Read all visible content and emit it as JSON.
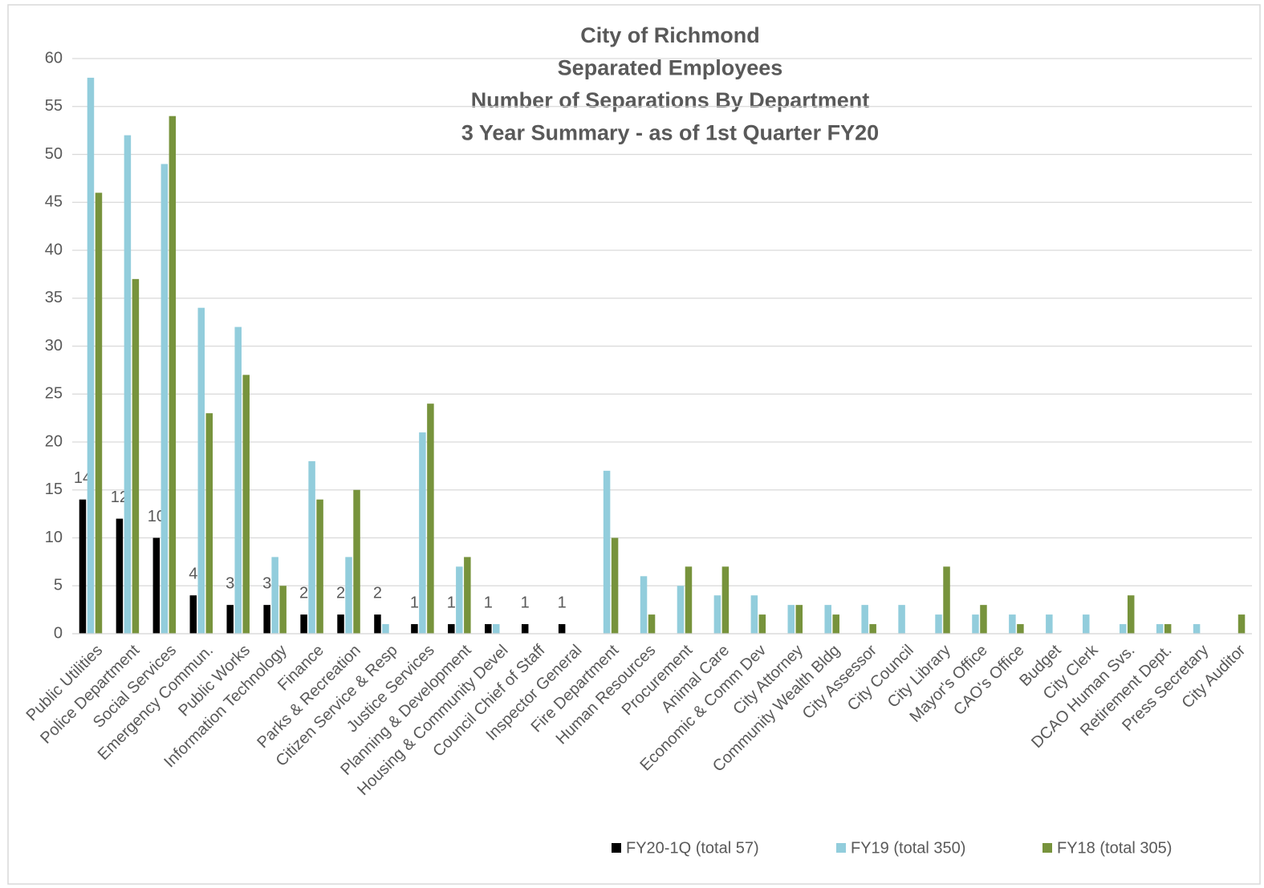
{
  "chart_data": {
    "type": "bar",
    "title": [
      "City of Richmond",
      "Separated Employees",
      "Number of Separations By Department",
      "3 Year Summary - as of 1st Quarter FY20"
    ],
    "categories": [
      "Public Utilities",
      "Police Department",
      "Social Services",
      "Emergency Commun.",
      "Public Works",
      "Information Technology",
      "Finance",
      "Parks & Recreation",
      "Citizen Service & Resp",
      "Justice Services",
      "Planning & Development",
      "Housing & Community Devel",
      "Council Chief of Staff",
      "Inspector General",
      "Fire Department",
      "Human Resources",
      "Procurement",
      "Animal Care",
      "Economic & Comm Dev",
      "City Attorney",
      "Community Wealth Bldg",
      "City Assessor",
      "City Council",
      "City Library",
      "Mayor's Office",
      "CAO's Office",
      "Budget",
      "City Clerk",
      "DCAO Human Svs.",
      "Retirement Dept.",
      "Press Secretary",
      "City Auditor"
    ],
    "series": [
      {
        "name": "FY20-1Q (total 57)",
        "color": "#000000",
        "data_labels": true,
        "values": [
          14,
          12,
          10,
          4,
          3,
          3,
          2,
          2,
          2,
          1,
          1,
          1,
          1,
          1,
          0,
          0,
          0,
          0,
          0,
          0,
          0,
          0,
          0,
          0,
          0,
          0,
          0,
          0,
          0,
          0,
          0,
          0
        ]
      },
      {
        "name": "FY19 (total 350)",
        "color": "#92cddc",
        "values": [
          58,
          52,
          49,
          34,
          32,
          8,
          18,
          8,
          1,
          21,
          7,
          1,
          0,
          0,
          17,
          6,
          5,
          4,
          4,
          3,
          3,
          3,
          3,
          2,
          2,
          2,
          2,
          2,
          1,
          1,
          1,
          0
        ]
      },
      {
        "name": "FY18 (total 305)",
        "color": "#77933c",
        "values": [
          46,
          37,
          54,
          23,
          27,
          5,
          14,
          15,
          0,
          24,
          8,
          0,
          0,
          0,
          10,
          2,
          7,
          7,
          2,
          3,
          2,
          1,
          0,
          7,
          3,
          1,
          0,
          0,
          4,
          1,
          0,
          2
        ]
      }
    ],
    "ylim": [
      0,
      60
    ],
    "yticks": [
      0,
      5,
      10,
      15,
      20,
      25,
      30,
      35,
      40,
      45,
      50,
      55,
      60
    ],
    "grid": true,
    "legend": "bottom"
  }
}
